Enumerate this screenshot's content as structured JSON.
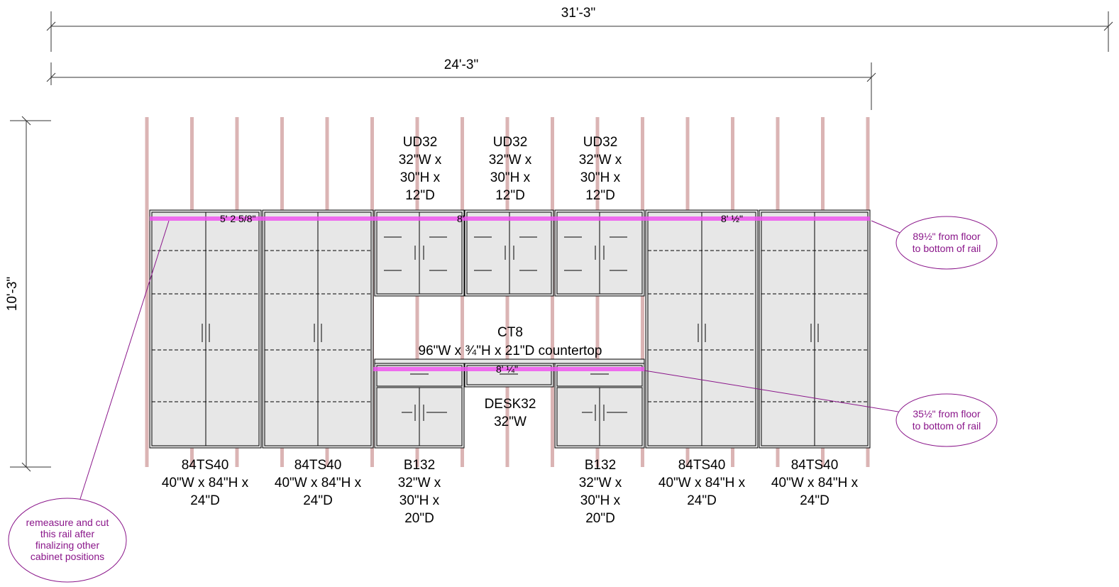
{
  "dimensions": {
    "overall_width": "31'-3\"",
    "cabinet_run_width": "24'-3\"",
    "height": "10'-3\""
  },
  "rail_labels": {
    "upper_left": "5' 2 5/8\"",
    "upper_mid": "8'",
    "upper_right": "8' ½\"",
    "lower_mid": "8' ¼\""
  },
  "cabinets": {
    "tall_1": [
      "84TS40",
      "40\"W x 84\"H x",
      "24\"D"
    ],
    "tall_2": [
      "84TS40",
      "40\"W x 84\"H x",
      "24\"D"
    ],
    "upper_1": [
      "UD32",
      "32\"W x",
      "30\"H x",
      "12\"D"
    ],
    "upper_2": [
      "UD32",
      "32\"W x",
      "30\"H x",
      "12\"D"
    ],
    "upper_3": [
      "UD32",
      "32\"W x",
      "30\"H x",
      "12\"D"
    ],
    "base_1": [
      "B132",
      "32\"W x",
      "30\"H x",
      "20\"D"
    ],
    "countertop": [
      "CT8",
      "96\"W x ¾\"H x 21\"D countertop"
    ],
    "desk": [
      "DESK32",
      "32\"W"
    ],
    "base_2": [
      "B132",
      "32\"W x",
      "30\"H x",
      "20\"D"
    ],
    "tall_3": [
      "84TS40",
      "40\"W x 84\"H x",
      "24\"D"
    ],
    "tall_4": [
      "84TS40",
      "40\"W x 84\"H x",
      "24\"D"
    ]
  },
  "notes": {
    "upper_rail": [
      "89½\" from floor",
      "to bottom of rail"
    ],
    "lower_rail": [
      "35½\" from floor",
      "to bottom of rail"
    ],
    "remeasure": [
      "remeasure and cut",
      "this rail after",
      "finalizing other",
      "cabinet positions"
    ]
  },
  "colors": {
    "rail": "#ee55ee",
    "stud": "#dbb4b4",
    "cabinet_fill": "#e7e7e7",
    "note": "#8a168a"
  }
}
